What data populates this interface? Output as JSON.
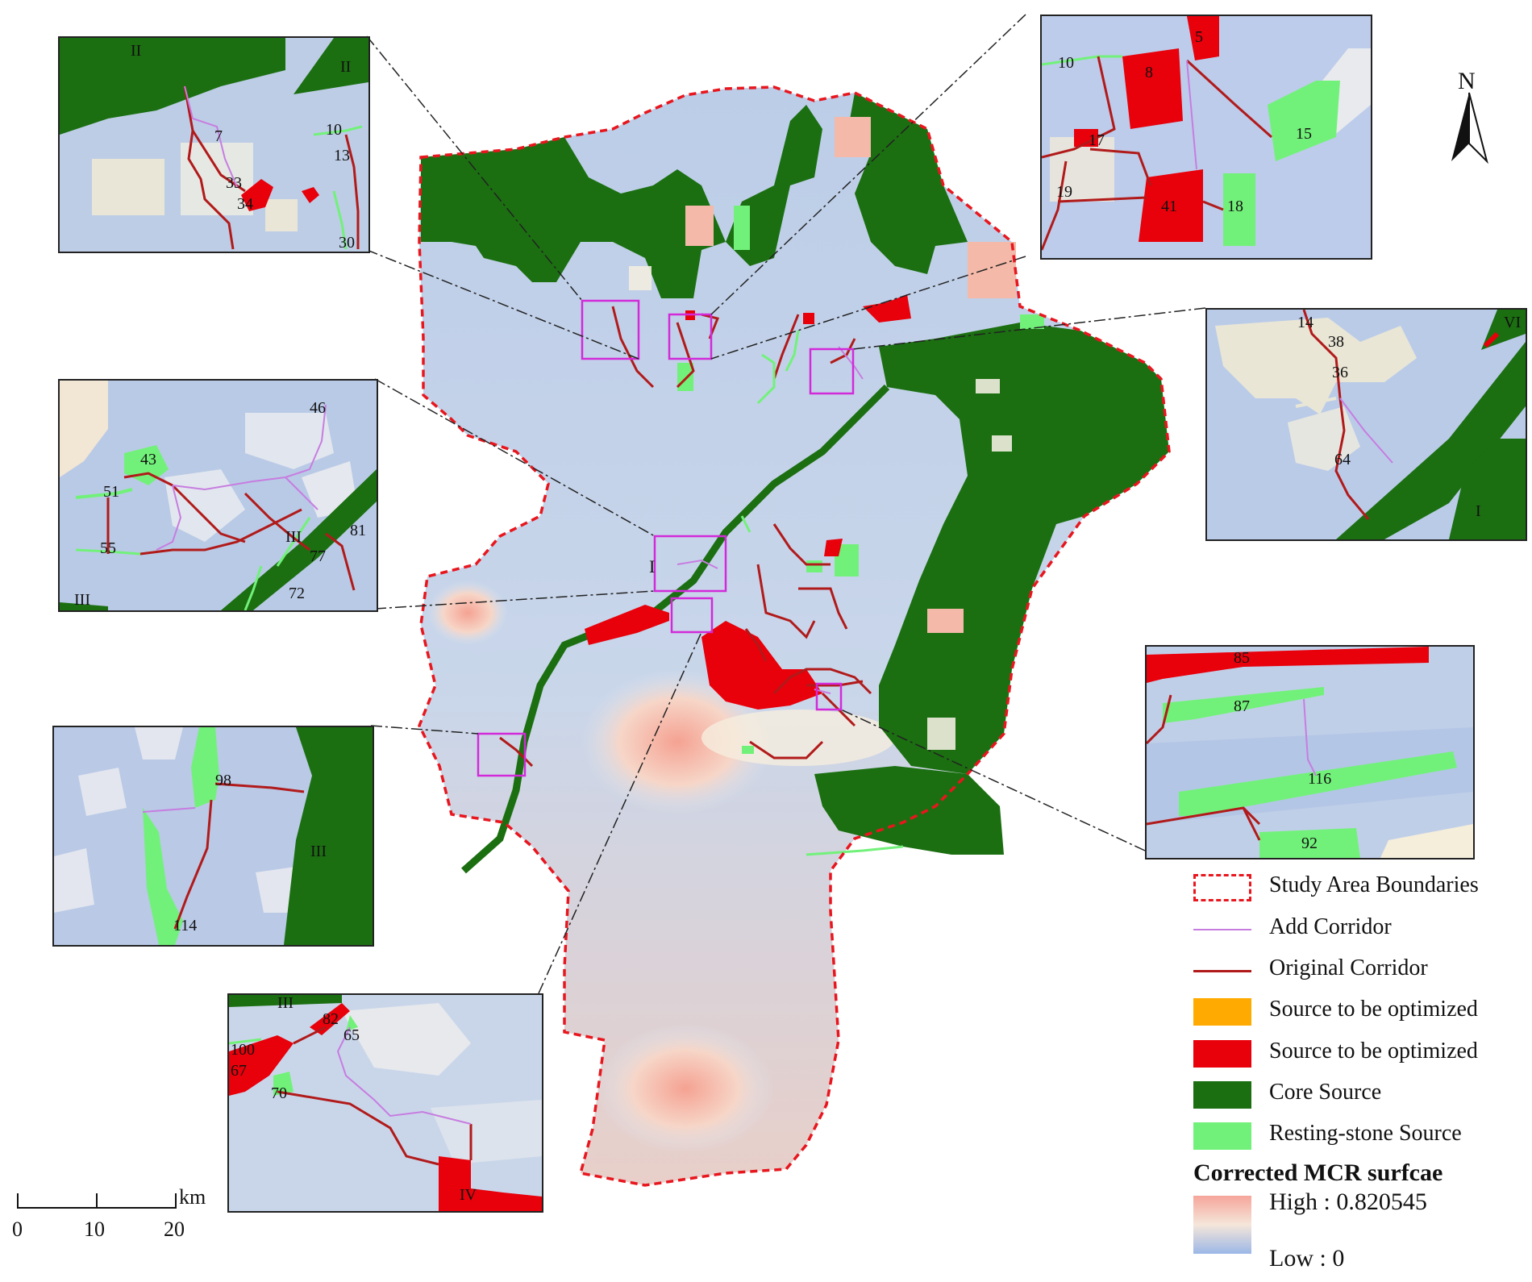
{
  "north_label": "N",
  "legend": {
    "items": [
      {
        "label": "Study Area Boundaries",
        "kind": "dashed",
        "color": "#e8161e"
      },
      {
        "label": "Add Corridor",
        "kind": "line",
        "color": "#c77de0"
      },
      {
        "label": "Original Corridor",
        "kind": "line",
        "color": "#b11a1a"
      },
      {
        "label": "Source to be optimized",
        "kind": "fill",
        "color": "#ffaa00"
      },
      {
        "label": "Source to be optimized",
        "kind": "fill",
        "color": "#e8000b"
      },
      {
        "label": "Core  Source",
        "kind": "fill",
        "color": "#1b6f11"
      },
      {
        "label": "Resting-stone Source",
        "kind": "fill",
        "color": "#72f17a"
      }
    ],
    "surface_title": "Corrected MCR surfcae",
    "surface_high": "High : 0.820545",
    "surface_low": "Low : 0"
  },
  "scale_bar": {
    "unit": "km",
    "ticks": [
      "0",
      "10",
      "20"
    ]
  },
  "map_labels": {
    "center": "I"
  },
  "colors": {
    "core": "#1b6f11",
    "resting": "#72f17a",
    "optimize": "#e8000b",
    "add_corridor": "#c77de0",
    "original_corridor": "#b11a1a",
    "boundary": "#e8161e",
    "locator": "#d22ad9"
  },
  "insets": {
    "top_left": {
      "labels": [
        "II",
        "II",
        "7",
        "10",
        "13",
        "33",
        "34",
        "30"
      ]
    },
    "top_right": {
      "labels": [
        "10",
        "8",
        "5",
        "17",
        "15",
        "19",
        "41",
        "18"
      ]
    },
    "mid_right": {
      "labels": [
        "14",
        "38",
        "36",
        "64",
        "VI",
        "I"
      ]
    },
    "mid_left": {
      "labels": [
        "46",
        "43",
        "51",
        "55",
        "III",
        "77",
        "72",
        "III",
        "81"
      ]
    },
    "right_lower": {
      "labels": [
        "85",
        "87",
        "116",
        "92"
      ]
    },
    "left_lower": {
      "labels": [
        "98",
        "III",
        "114"
      ]
    },
    "bottom": {
      "labels": [
        "III",
        "82",
        "65",
        "100",
        "67",
        "70",
        "IV"
      ]
    }
  }
}
